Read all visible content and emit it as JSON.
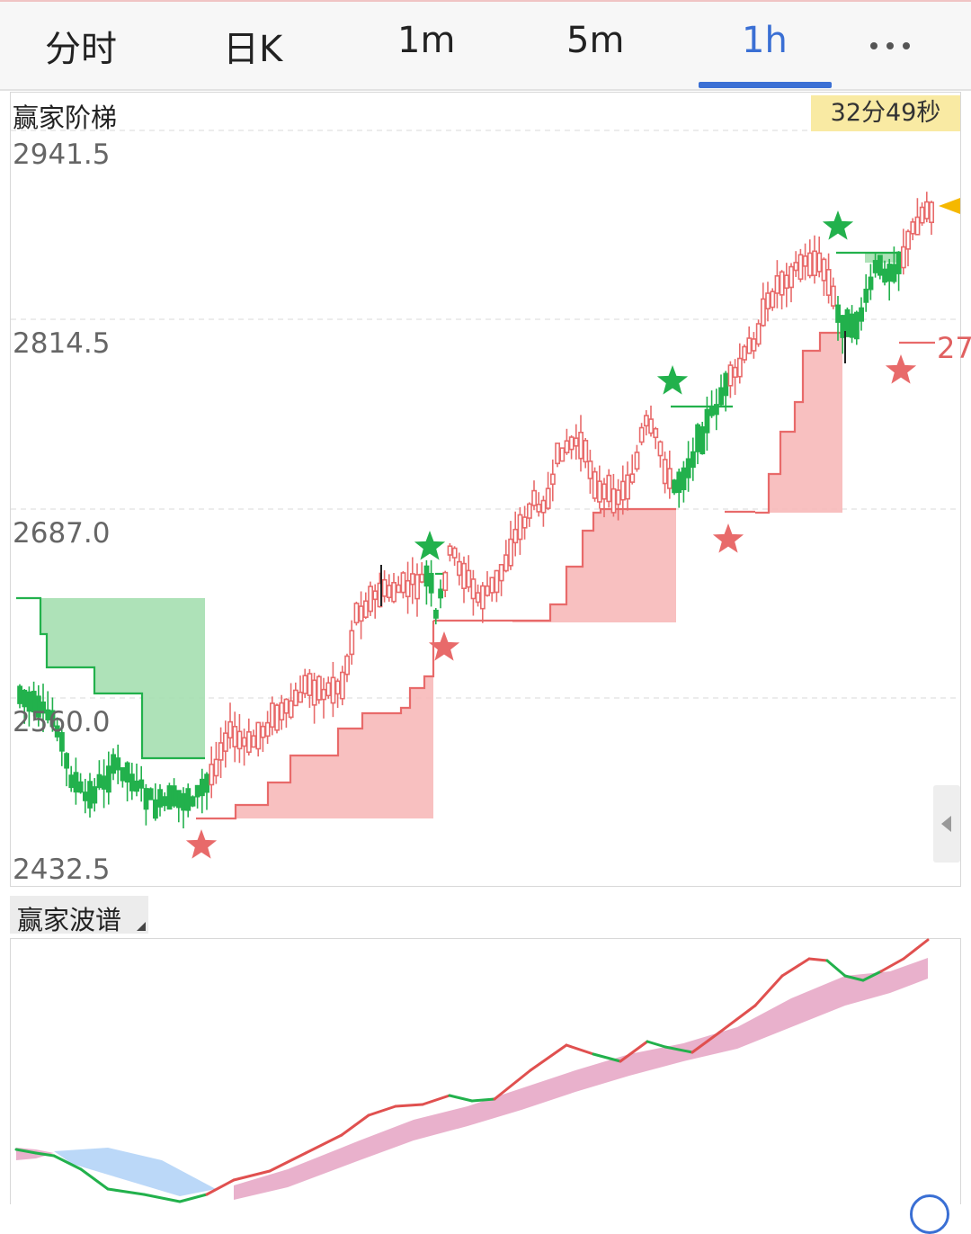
{
  "tabs": [
    {
      "label": "分时"
    },
    {
      "label": "日K"
    },
    {
      "label": "1m"
    },
    {
      "label": "5m"
    },
    {
      "label": "1h"
    }
  ],
  "active_tab": "1h",
  "more_icon": "more-horizontal-icon",
  "main_panel": {
    "title": "赢家阶梯",
    "countdown": "32分49秒",
    "price_labels": [
      "2941.5",
      "2814.5",
      "2687.0",
      "2560.0",
      "2432.5"
    ],
    "right_cut_label": "27"
  },
  "sub_panel": {
    "title": "赢家波谱"
  },
  "colors": {
    "up": "#e86a6a",
    "down": "#22b14c",
    "ladder_up_fill": "#f7b9b9",
    "ladder_down_fill": "#a5dfb0",
    "accent": "#3a6fd4",
    "band_pink": "#e7a8c6",
    "band_blue": "#b4d4f7"
  },
  "chart_data": {
    "type": "candlestick",
    "ylim": [
      2432.5,
      2941.5
    ],
    "y_ticks": [
      2432.5,
      2560.0,
      2687.0,
      2814.5,
      2941.5
    ],
    "signals": [
      {
        "type": "sell",
        "color": "green",
        "symbol": "star"
      },
      {
        "type": "buy",
        "color": "red",
        "symbol": "star"
      }
    ]
  }
}
